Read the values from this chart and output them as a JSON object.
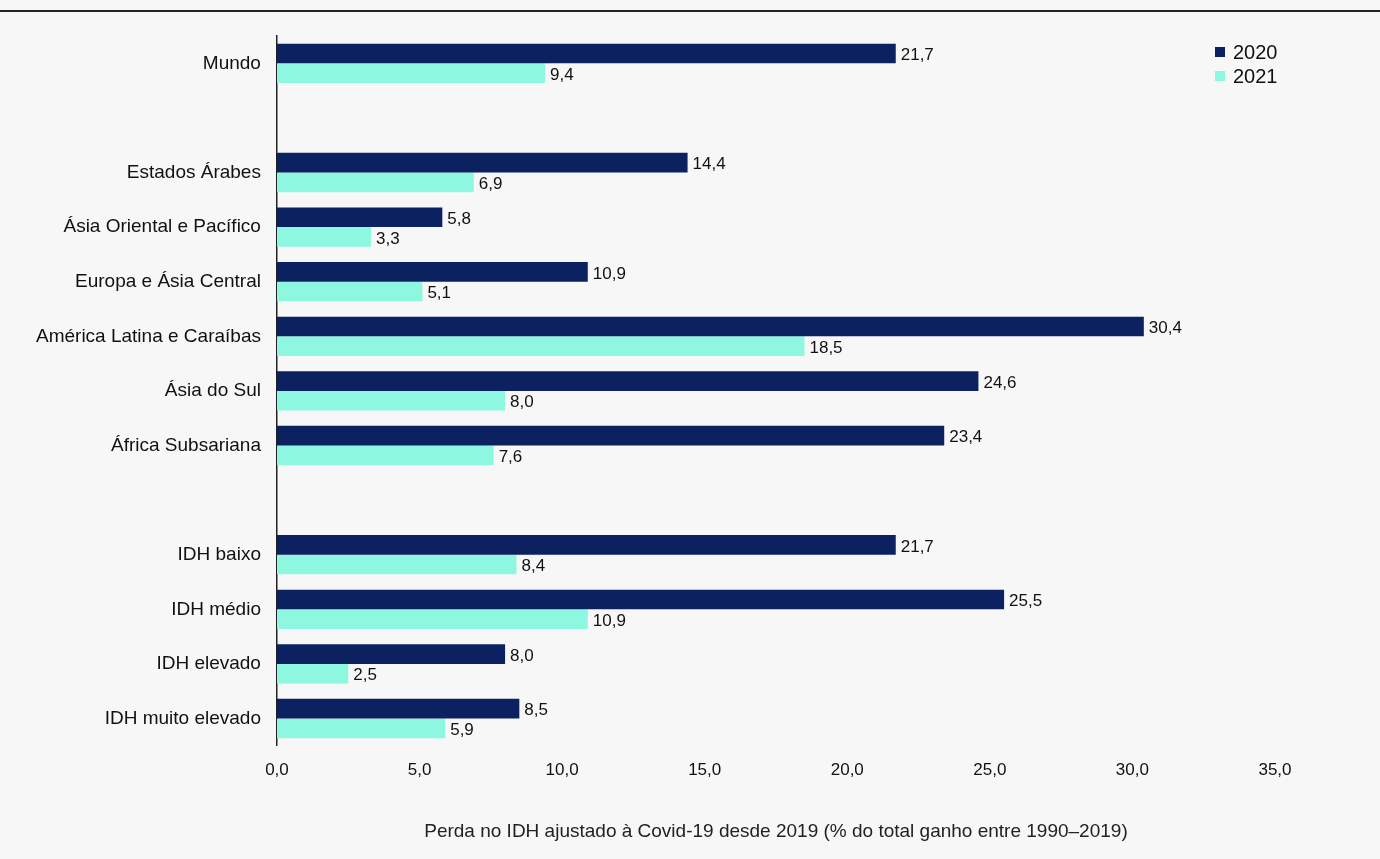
{
  "chart_data": {
    "type": "bar",
    "orientation": "horizontal",
    "xlabel": "Perda no IDH ajustado à Covid-19 desde 2019 (% do total ganho entre 1990–2019)",
    "categories": [
      "Mundo",
      null,
      "Estados Árabes",
      "Ásia Oriental e Pacífico",
      "Europa e Ásia Central",
      "América Latina e Caraíbas",
      "Ásia do Sul",
      "África Subsariana",
      null,
      "IDH baixo",
      "IDH médio",
      "IDH elevado",
      "IDH muito elevado"
    ],
    "series": [
      {
        "name": "2020",
        "color": "#0c2160",
        "values": [
          21.7,
          null,
          14.4,
          5.8,
          10.9,
          30.4,
          24.6,
          23.4,
          null,
          21.7,
          25.5,
          8.0,
          8.5
        ],
        "value_labels": [
          "21,7",
          null,
          "14,4",
          "5,8",
          "10,9",
          "30,4",
          "24,6",
          "23,4",
          null,
          "21,7",
          "25,5",
          "8,0",
          "8,5"
        ]
      },
      {
        "name": "2021",
        "color": "#8ef7e0",
        "values": [
          9.4,
          null,
          6.9,
          3.3,
          5.1,
          18.5,
          8.0,
          7.6,
          null,
          8.4,
          10.9,
          2.5,
          5.9
        ],
        "value_labels": [
          "9,4",
          null,
          "6,9",
          "3,3",
          "5,1",
          "18,5",
          "8,0",
          "7,6",
          null,
          "8,4",
          "10,9",
          "2,5",
          "5,9"
        ]
      }
    ],
    "xlim": [
      0,
      35
    ],
    "xticks": [
      {
        "value": 0,
        "label": "0,0"
      },
      {
        "value": 5,
        "label": "5,0"
      },
      {
        "value": 10,
        "label": "10,0"
      },
      {
        "value": 15,
        "label": "15,0"
      },
      {
        "value": 20,
        "label": "20,0"
      },
      {
        "value": 25,
        "label": "25,0"
      },
      {
        "value": 30,
        "label": "30,0"
      },
      {
        "value": 35,
        "label": "35,0"
      }
    ],
    "grid": false,
    "legend": "top right"
  }
}
